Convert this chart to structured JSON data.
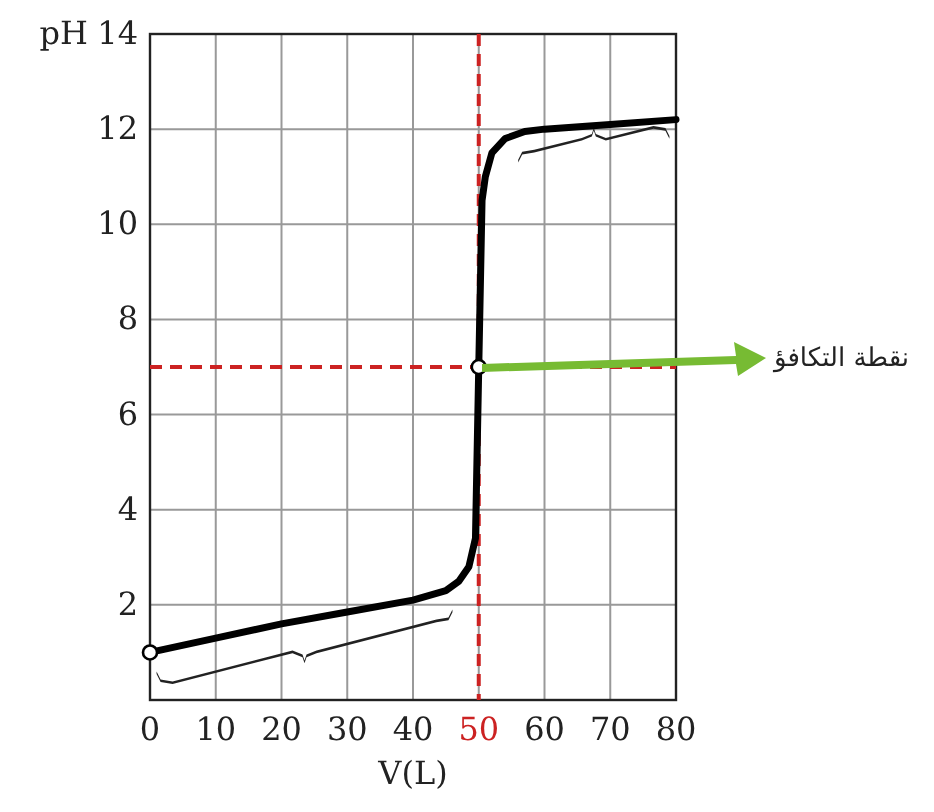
{
  "chart_data": {
    "type": "line",
    "xlabel": "V(L)",
    "ylabel": "pH",
    "series": [
      {
        "type": "line",
        "color": "#000000",
        "x": [
          0,
          10,
          20,
          30,
          40,
          45,
          47,
          48.5,
          49.5,
          50,
          50.5,
          51,
          52,
          54,
          57,
          60,
          70,
          80
        ],
        "values": [
          1,
          1.3,
          1.6,
          1.85,
          2.1,
          2.3,
          2.5,
          2.8,
          3.4,
          7,
          10.5,
          11,
          11.5,
          11.8,
          11.95,
          12,
          12.1,
          12.2
        ]
      },
      {
        "type": "scatter",
        "color": "#000000",
        "x": [
          0,
          50
        ],
        "values": [
          1,
          7
        ],
        "marker": "circle"
      }
    ],
    "xlim": [
      0,
      80
    ],
    "xticks": [
      0,
      10,
      20,
      30,
      40,
      50,
      60,
      70,
      80
    ],
    "ylim": [
      0,
      14
    ],
    "yticks": [
      2,
      4,
      6,
      8,
      10,
      12,
      14
    ],
    "grid": true,
    "ref_lines": [
      {
        "axis": "x",
        "value": 50,
        "color": "#cc2222",
        "line_style": "dashed"
      },
      {
        "axis": "y",
        "value": 7,
        "color": "#cc2222",
        "line_style": "dashed"
      }
    ],
    "annotations": [
      "نقطة التكافؤ"
    ]
  }
}
